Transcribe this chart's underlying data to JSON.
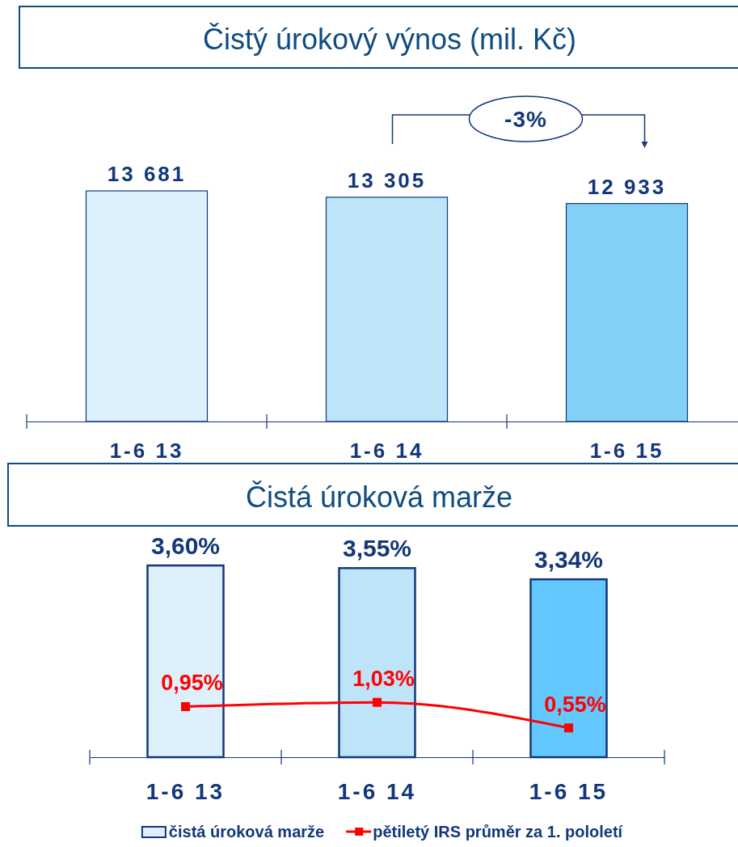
{
  "chart_data": [
    {
      "type": "bar",
      "title": "Čistý úrokový výnos (mil. Kč)",
      "categories": [
        "1-6 13",
        "1-6 14",
        "1-6 15"
      ],
      "values": [
        13681,
        13305,
        12933
      ],
      "colors": [
        "#ddf0fc",
        "#bde5f9",
        "#82d0f5"
      ],
      "value_labels": [
        "13 681",
        "13 305",
        "12 933"
      ],
      "annotations": [
        "-3%"
      ]
    },
    {
      "type": "bar",
      "title": "Čistá úroková marže",
      "categories": [
        "1-6 13",
        "1-6 14",
        "1-6 15"
      ],
      "series": [
        {
          "name": "čistá úroková marže",
          "colors": [
            "#ddf0fc",
            "#bee4f9",
            "#63c8fd"
          ],
          "values": [
            3.6,
            3.55,
            3.34
          ],
          "value_labels": [
            "3,60%",
            "3,55%",
            "3,34%"
          ]
        },
        {
          "name": "pětiletý IRS průměr za 1. pololetí",
          "type": "line",
          "color": "#ff0000",
          "values": [
            0.95,
            1.03,
            0.55
          ],
          "value_labels": [
            "0,95%",
            "1,03%",
            "0,55%"
          ]
        }
      ],
      "marker": "square",
      "legend": "bottom"
    }
  ]
}
